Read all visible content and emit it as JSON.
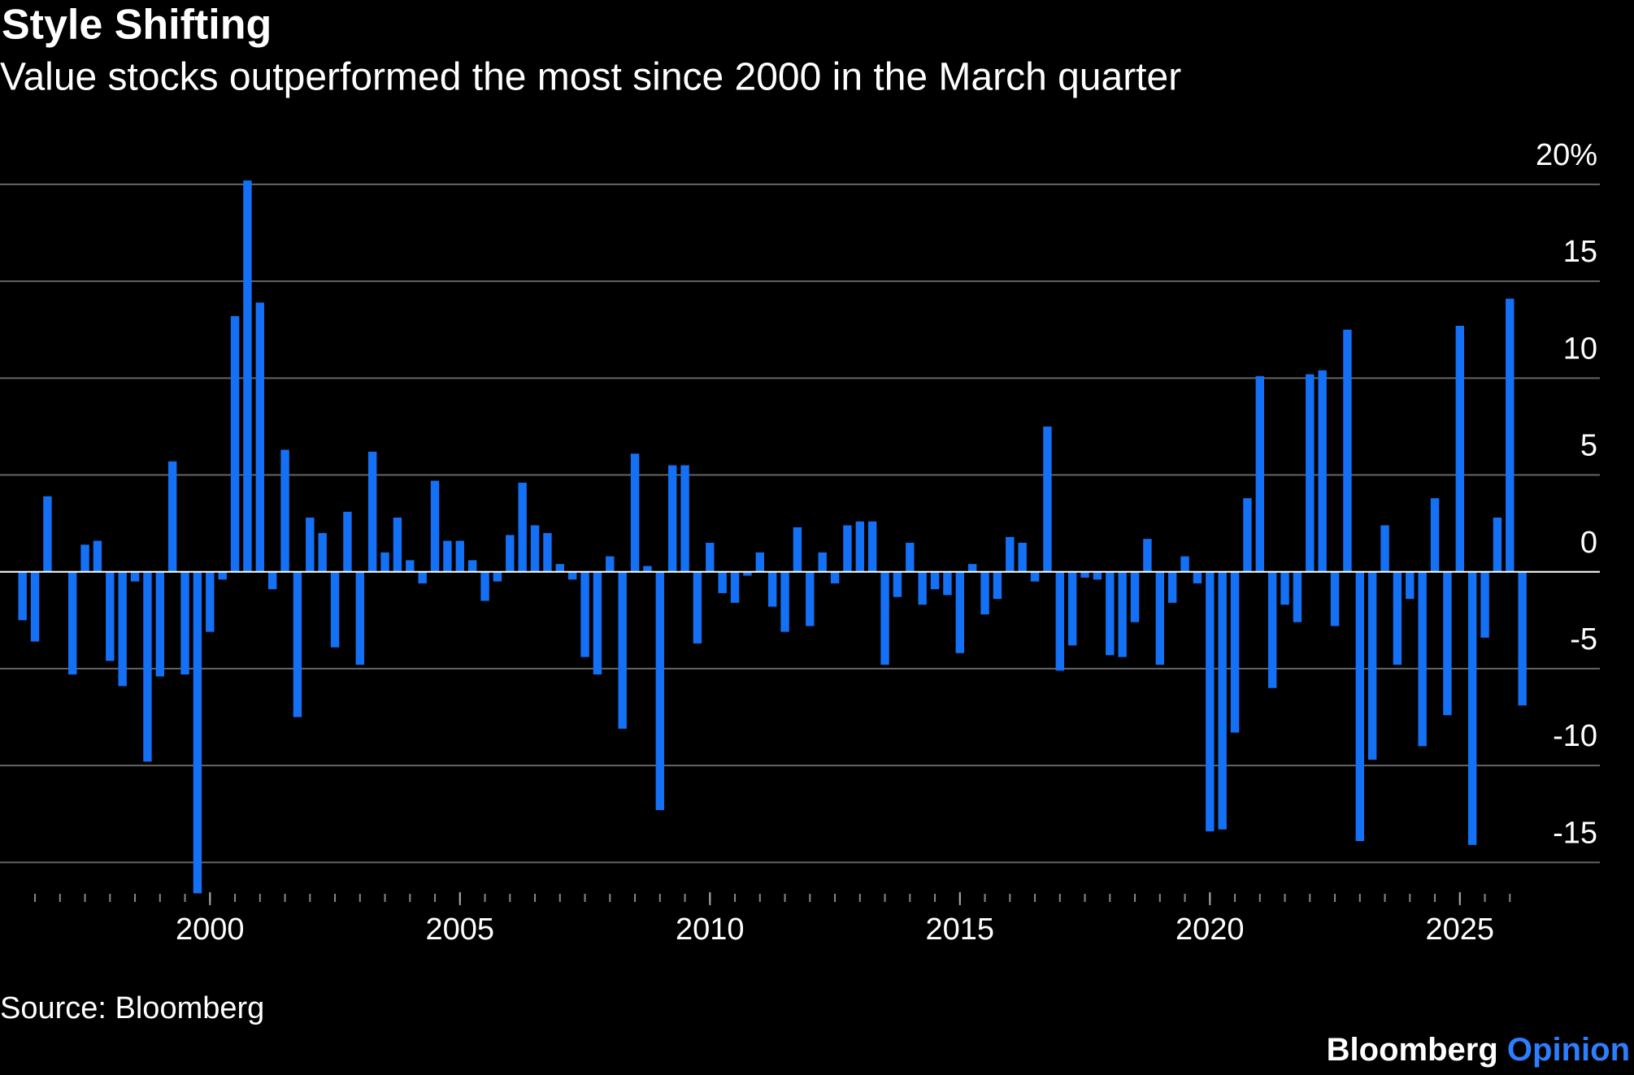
{
  "chart_data": {
    "type": "bar",
    "title": "Style Shifting",
    "subtitle": "Value stocks outperformed the most since 2000 in the March quarter",
    "source": "Source: Bloomberg",
    "branding": {
      "name": "Bloomberg",
      "section": "Opinion"
    },
    "color": "#1470f5",
    "x": [
      1996.25,
      1996.5,
      1996.75,
      1997,
      1997.25,
      1997.5,
      1997.75,
      1998,
      1998.25,
      1998.5,
      1998.75,
      1999,
      1999.25,
      1999.5,
      1999.75,
      2000,
      2000.25,
      2000.5,
      2000.75,
      2001,
      2001.25,
      2001.5,
      2001.75,
      2002,
      2002.25,
      2002.5,
      2002.75,
      2003,
      2003.25,
      2003.5,
      2003.75,
      2004,
      2004.25,
      2004.5,
      2004.75,
      2005,
      2005.25,
      2005.5,
      2005.75,
      2006,
      2006.25,
      2006.5,
      2006.75,
      2007,
      2007.25,
      2007.5,
      2007.75,
      2008,
      2008.25,
      2008.5,
      2008.75,
      2009,
      2009.25,
      2009.5,
      2009.75,
      2010,
      2010.25,
      2010.5,
      2010.75,
      2011,
      2011.25,
      2011.5,
      2011.75,
      2012,
      2012.25,
      2012.5,
      2012.75,
      2013,
      2013.25,
      2013.5,
      2013.75,
      2014,
      2014.25,
      2014.5,
      2014.75,
      2015,
      2015.25,
      2015.5,
      2015.75,
      2016,
      2016.25,
      2016.5,
      2016.75,
      2017,
      2017.25,
      2017.5,
      2017.75,
      2018,
      2018.25,
      2018.5,
      2018.75,
      2019,
      2019.25,
      2019.5,
      2019.75,
      2020,
      2020.25,
      2020.5,
      2020.75,
      2021,
      2021.25,
      2021.5,
      2021.75,
      2022,
      2022.25,
      2022.5,
      2022.75,
      2023,
      2023.25,
      2023.5,
      2023.75,
      2024,
      2024.25,
      2024.5,
      2024.75,
      2025,
      2025.25,
      2025.5,
      2025.75,
      2026,
      2026.25
    ],
    "values": [
      -2.5,
      -3.6,
      3.9,
      0,
      -5.3,
      1.4,
      1.6,
      -4.6,
      -5.9,
      -0.5,
      -9.8,
      -5.4,
      5.7,
      -5.3,
      -16.6,
      -3.1,
      -0.4,
      13.2,
      20.2,
      13.9,
      -0.9,
      6.3,
      -7.5,
      2.8,
      2.0,
      -3.9,
      3.1,
      -4.8,
      6.2,
      1.0,
      2.8,
      0.6,
      -0.6,
      4.7,
      1.6,
      1.6,
      0.6,
      -1.5,
      -0.5,
      1.9,
      4.6,
      2.4,
      2.0,
      0.4,
      -0.4,
      -4.4,
      -5.3,
      0.8,
      -8.1,
      6.1,
      0.3,
      -12.3,
      5.5,
      5.5,
      -3.7,
      1.5,
      -1.1,
      -1.6,
      -0.2,
      1.0,
      -1.8,
      -3.1,
      2.3,
      -2.8,
      1.0,
      -0.6,
      2.4,
      2.6,
      2.6,
      -4.8,
      -1.3,
      1.5,
      -1.7,
      -0.9,
      -1.2,
      -4.2,
      0.4,
      -2.2,
      -1.4,
      1.8,
      1.5,
      -0.5,
      7.5,
      -5.1,
      -3.8,
      -0.3,
      -0.4,
      -4.3,
      -4.4,
      -2.6,
      1.7,
      -4.8,
      -1.6,
      0.8,
      -0.6,
      -13.4,
      -13.3,
      -8.3,
      3.8,
      10.1,
      -6.0,
      -1.7,
      -2.6,
      10.2,
      10.4,
      -2.8,
      12.5,
      -13.9,
      -9.7,
      2.4,
      -4.8,
      -1.4,
      -9.0,
      3.8,
      -7.4,
      12.7,
      -14.1,
      -3.4,
      2.8,
      14.1,
      -6.9
    ],
    "xlim": [
      1995.8,
      2027.8
    ],
    "xticks": [
      2000,
      2005,
      2010,
      2015,
      2020,
      2025
    ],
    "ylim": [
      -17,
      20.5
    ],
    "yticks": [
      {
        "value": 20,
        "label": "20%"
      },
      15,
      10,
      5,
      0,
      -5,
      -10,
      -15
    ],
    "grid": true
  }
}
